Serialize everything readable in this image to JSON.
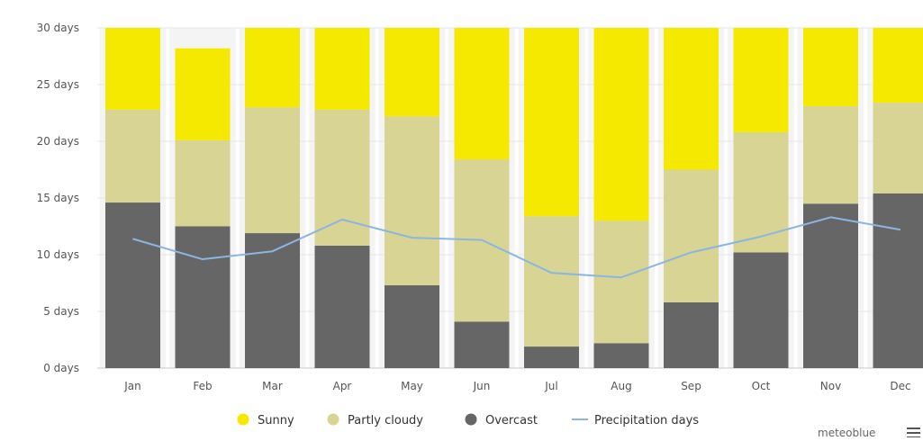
{
  "chart_data": {
    "type": "bar",
    "stacked": true,
    "categories": [
      "Jan",
      "Feb",
      "Mar",
      "Apr",
      "May",
      "Jun",
      "Jul",
      "Aug",
      "Sep",
      "Oct",
      "Nov",
      "Dec"
    ],
    "series": [
      {
        "name": "Overcast",
        "kind": "bar",
        "color": "#666666",
        "values": [
          14.6,
          12.5,
          11.9,
          10.8,
          7.3,
          4.1,
          1.9,
          2.2,
          5.8,
          10.2,
          14.5,
          15.4
        ]
      },
      {
        "name": "Partly cloudy",
        "kind": "bar",
        "color": "#d8d494",
        "values": [
          8.2,
          7.6,
          11.1,
          12.0,
          14.9,
          14.3,
          11.5,
          10.8,
          11.7,
          10.6,
          8.6,
          8.0
        ]
      },
      {
        "name": "Sunny",
        "kind": "bar",
        "color": "#f5e900",
        "values": [
          7.2,
          8.1,
          7.0,
          7.2,
          7.8,
          11.6,
          16.6,
          17.0,
          12.5,
          9.2,
          6.9,
          6.6
        ]
      },
      {
        "name": "Precipitation days",
        "kind": "line",
        "color": "#8ab6e0",
        "values": [
          11.4,
          9.6,
          10.3,
          13.1,
          11.5,
          11.3,
          8.4,
          8.0,
          10.2,
          11.6,
          13.3,
          12.2
        ]
      }
    ],
    "y_ticks": [
      0,
      5,
      10,
      15,
      20,
      25,
      30
    ],
    "y_tick_labels": [
      "0 days",
      "5 days",
      "10 days",
      "15 days",
      "20 days",
      "25 days",
      "30 days"
    ],
    "ylim": [
      0,
      30
    ],
    "xlabel": "",
    "ylabel": "",
    "title": "",
    "grid": true,
    "legend_position": "bottom-center"
  },
  "legend": {
    "items": [
      {
        "label": "Sunny",
        "symbol": "circle",
        "color": "#f5e900"
      },
      {
        "label": "Partly cloudy",
        "symbol": "circle",
        "color": "#d8d494"
      },
      {
        "label": "Overcast",
        "symbol": "circle",
        "color": "#666666"
      },
      {
        "label": "Precipitation days",
        "symbol": "line",
        "color": "#8ab6e0"
      }
    ]
  },
  "credit": "meteoblue",
  "menu_icon": "hamburger-menu-icon"
}
